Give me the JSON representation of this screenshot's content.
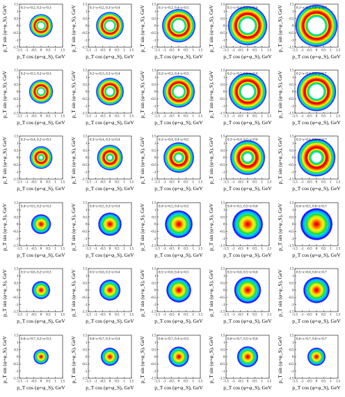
{
  "axis_labels": {
    "x": "p_T cos (φ+φ_S), GeV",
    "y": "p_T sin (φ+φ_S), GeV"
  },
  "chart_data": {
    "type": "heatmap",
    "layout": {
      "rows": 6,
      "cols": 5
    },
    "xlim": [
      -1.5,
      1.5
    ],
    "ylim": [
      -1.5,
      1.5
    ],
    "xticks": [
      -1.5,
      -1,
      -0.5,
      0,
      0.5,
      1,
      1.5
    ],
    "yticks": [
      -1.5,
      -1,
      -0.5,
      0,
      0.5,
      1,
      1.5
    ],
    "grid": false,
    "xlabel": "p_T cos (φ+φ_S), GeV",
    "ylabel": "p_T sin (φ+φ_S), GeV",
    "colors": [
      "#1a1aff",
      "#00a6ff",
      "#00e0c8",
      "#2fdc2f",
      "#b8ee20",
      "#ffee00",
      "#ffa000",
      "#ff4000",
      "#ee0000"
    ],
    "panels": [
      {
        "title": "0.1<x<0.2, 0.2<z<0.3",
        "r_inner": 0.22,
        "r_outer": 0.8
      },
      {
        "title": "0.1<x<0.2, 0.3<z<0.4",
        "r_inner": 0.3,
        "r_outer": 0.95
      },
      {
        "title": "0.1<x<0.2, 0.4<z<0.5",
        "r_inner": 0.4,
        "r_outer": 1.15
      },
      {
        "title": "0.1<x<0.2, 0.5<z<0.6",
        "r_inner": 0.5,
        "r_outer": 1.35
      },
      {
        "title": "0.1<x<0.2, 0.6<z<0.7",
        "r_inner": 0.6,
        "r_outer": 1.45
      },
      {
        "title": "0.2<x<0.3, 0.2<z<0.3",
        "r_inner": 0.2,
        "r_outer": 0.82
      },
      {
        "title": "0.2<x<0.3, 0.3<z<0.4",
        "r_inner": 0.25,
        "r_outer": 0.95
      },
      {
        "title": "0.2<x<0.3, 0.4<z<0.5",
        "r_inner": 0.35,
        "r_outer": 1.1
      },
      {
        "title": "0.2<x<0.3, 0.5<z<0.6",
        "r_inner": 0.45,
        "r_outer": 1.3
      },
      {
        "title": "0.2<x<0.3, 0.6<z<0.7",
        "r_inner": 0.5,
        "r_outer": 1.35
      },
      {
        "title": "0.3<x<0.4, 0.2<z<0.3",
        "r_inner": 0.12,
        "r_outer": 0.78
      },
      {
        "title": "0.3<x<0.4, 0.3<z<0.4",
        "r_inner": 0.15,
        "r_outer": 0.88
      },
      {
        "title": "0.3<x<0.4, 0.4<z<0.5",
        "r_inner": 0.22,
        "r_outer": 1.05
      },
      {
        "title": "0.3<x<0.4, 0.5<z<0.6",
        "r_inner": 0.28,
        "r_outer": 1.2
      },
      {
        "title": "0.3<x<0.4, 0.6<z<0.7",
        "r_inner": 0.35,
        "r_outer": 1.3
      },
      {
        "title": "0.4<x<0.5, 0.2<z<0.3",
        "r_inner": 0,
        "r_outer": 0.68
      },
      {
        "title": "0.4<x<0.5, 0.3<z<0.4",
        "r_inner": 0,
        "r_outer": 0.8
      },
      {
        "title": "0.4<x<0.5, 0.4<z<0.5",
        "r_inner": 0,
        "r_outer": 0.95
      },
      {
        "title": "0.4<x<0.5, 0.5<z<0.6",
        "r_inner": 0,
        "r_outer": 1.05
      },
      {
        "title": "0.4<x<0.5, 0.6<z<0.7",
        "r_inner": 0,
        "r_outer": 1.1
      },
      {
        "title": "0.5<x<0.6, 0.2<z<0.3",
        "r_inner": 0,
        "r_outer": 0.62
      },
      {
        "title": "0.5<x<0.6, 0.3<z<0.4",
        "r_inner": 0,
        "r_outer": 0.72
      },
      {
        "title": "0.5<x<0.6, 0.4<z<0.5",
        "r_inner": 0,
        "r_outer": 0.85
      },
      {
        "title": "0.5<x<0.6, 0.5<z<0.6",
        "r_inner": 0,
        "r_outer": 0.92
      },
      {
        "title": "0.5<x<0.6, 0.6<z<0.7",
        "r_inner": 0,
        "r_outer": 0.9
      },
      {
        "title": "0.6<x<0.7, 0.2<z<0.3",
        "r_inner": 0,
        "r_outer": 0.52
      },
      {
        "title": "0.6<x<0.7, 0.3<z<0.4",
        "r_inner": 0,
        "r_outer": 0.62
      },
      {
        "title": "0.6<x<0.7, 0.4<z<0.5",
        "r_inner": 0,
        "r_outer": 0.7
      },
      {
        "title": "0.6<x<0.7, 0.5<z<0.6",
        "r_inner": 0,
        "r_outer": 0.72
      },
      {
        "title": "0.6<x<0.7, 0.6<z<0.7",
        "r_inner": 0,
        "r_outer": 0.62
      }
    ]
  }
}
